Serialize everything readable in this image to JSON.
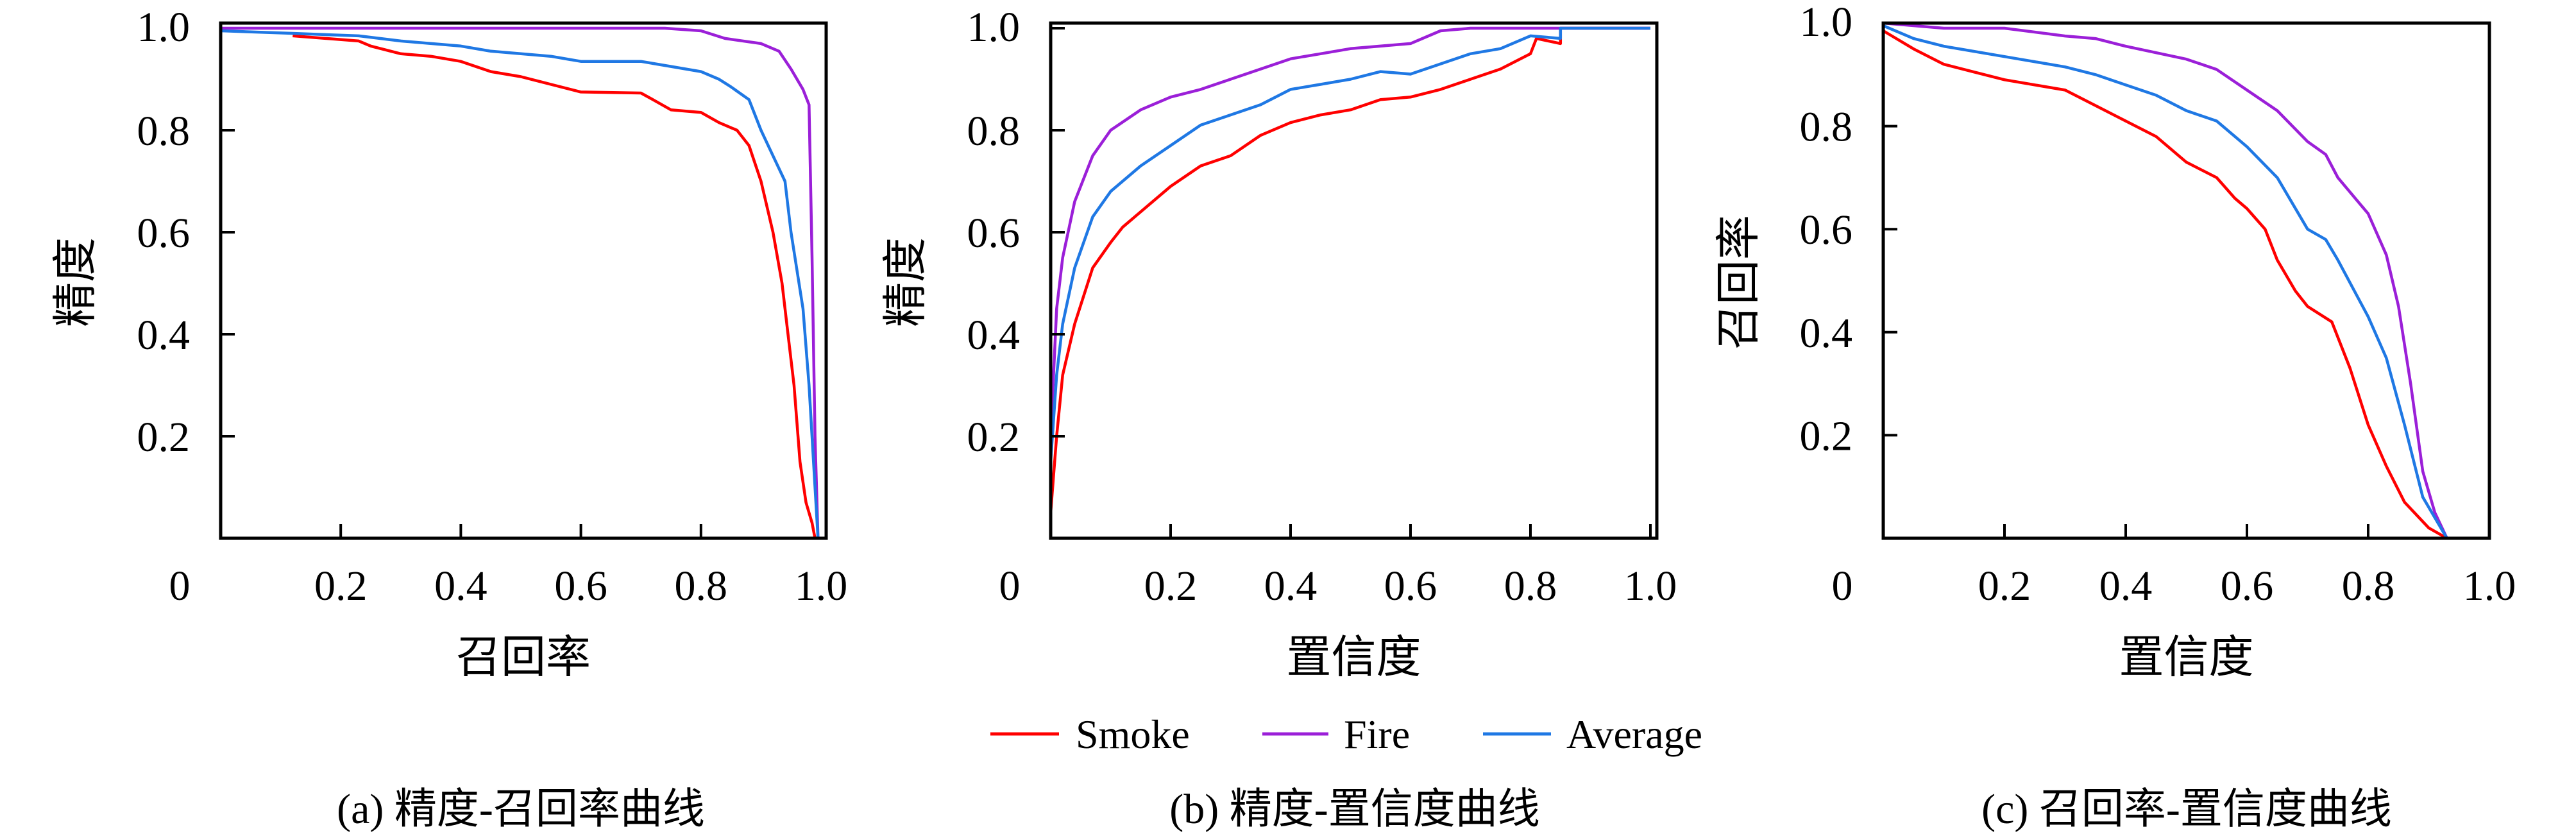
{
  "colors": {
    "Smoke": "#ff0000",
    "Fire": "#9b1fd8",
    "Average": "#1f78e4"
  },
  "legend": [
    {
      "name": "Smoke"
    },
    {
      "name": "Fire"
    },
    {
      "name": "Average"
    }
  ],
  "chart_data": [
    {
      "type": "line",
      "caption": "(a) 精度-召回率曲线",
      "xlabel": "召回率",
      "ylabel": "精度",
      "xlim": [
        0,
        1.0
      ],
      "ylim": [
        0,
        1.0
      ],
      "xticks": [
        "0",
        "0.2",
        "0.4",
        "0.6",
        "0.8",
        "1.0"
      ],
      "yticks": [
        "0.2",
        "0.4",
        "0.6",
        "0.8",
        "1.0"
      ],
      "grid": false,
      "series": [
        {
          "name": "Smoke",
          "x": [
            0.12,
            0.23,
            0.25,
            0.3,
            0.35,
            0.4,
            0.45,
            0.5,
            0.55,
            0.6,
            0.7,
            0.72,
            0.75,
            0.8,
            0.83,
            0.86,
            0.88,
            0.9,
            0.92,
            0.935,
            0.945,
            0.955,
            0.965,
            0.975,
            0.985,
            0.99
          ],
          "y": [
            0.985,
            0.975,
            0.965,
            0.95,
            0.945,
            0.935,
            0.915,
            0.905,
            0.89,
            0.875,
            0.873,
            0.86,
            0.84,
            0.835,
            0.815,
            0.8,
            0.77,
            0.7,
            0.6,
            0.5,
            0.4,
            0.3,
            0.15,
            0.07,
            0.03,
            0.0
          ]
        },
        {
          "name": "Fire",
          "x": [
            0.0,
            0.74,
            0.8,
            0.84,
            0.9,
            0.93,
            0.95,
            0.97,
            0.98,
            0.985,
            0.99,
            0.995
          ],
          "y": [
            1.0,
            1.0,
            0.995,
            0.98,
            0.97,
            0.955,
            0.92,
            0.88,
            0.85,
            0.55,
            0.2,
            0.0
          ]
        },
        {
          "name": "Average",
          "x": [
            0.0,
            0.12,
            0.23,
            0.3,
            0.4,
            0.45,
            0.55,
            0.6,
            0.7,
            0.75,
            0.8,
            0.83,
            0.85,
            0.88,
            0.9,
            0.92,
            0.94,
            0.95,
            0.97,
            0.98,
            0.99,
            0.995
          ],
          "y": [
            0.995,
            0.99,
            0.985,
            0.975,
            0.965,
            0.955,
            0.945,
            0.935,
            0.935,
            0.925,
            0.915,
            0.9,
            0.885,
            0.86,
            0.8,
            0.75,
            0.7,
            0.6,
            0.45,
            0.3,
            0.1,
            0.0
          ]
        }
      ]
    },
    {
      "type": "line",
      "caption": "(b) 精度-置信度曲线",
      "xlabel": "置信度",
      "ylabel": "精度",
      "xlim": [
        0,
        1.0
      ],
      "ylim": [
        0,
        1.0
      ],
      "xticks": [
        "0",
        "0.2",
        "0.4",
        "0.6",
        "0.8",
        "1.0"
      ],
      "yticks": [
        "0.2",
        "0.4",
        "0.6",
        "0.8",
        "1.0"
      ],
      "grid": false,
      "legend_position": "bottom",
      "series": [
        {
          "name": "Smoke",
          "x": [
            0,
            0.01,
            0.02,
            0.04,
            0.07,
            0.1,
            0.12,
            0.15,
            0.2,
            0.25,
            0.3,
            0.35,
            0.4,
            0.45,
            0.5,
            0.55,
            0.6,
            0.65,
            0.7,
            0.75,
            0.8,
            0.81,
            0.85,
            0.85,
            1.0
          ],
          "y": [
            0.05,
            0.2,
            0.32,
            0.42,
            0.53,
            0.58,
            0.61,
            0.64,
            0.69,
            0.73,
            0.75,
            0.79,
            0.815,
            0.83,
            0.84,
            0.86,
            0.865,
            0.88,
            0.9,
            0.92,
            0.95,
            0.98,
            0.97,
            1.0,
            1.0
          ]
        },
        {
          "name": "Fire",
          "x": [
            0,
            0.01,
            0.02,
            0.04,
            0.07,
            0.1,
            0.15,
            0.2,
            0.25,
            0.3,
            0.35,
            0.4,
            0.45,
            0.5,
            0.6,
            0.65,
            0.7,
            1.0
          ],
          "y": [
            0.2,
            0.45,
            0.55,
            0.66,
            0.75,
            0.8,
            0.84,
            0.865,
            0.88,
            0.9,
            0.92,
            0.94,
            0.95,
            0.96,
            0.97,
            0.995,
            1.0,
            1.0
          ]
        },
        {
          "name": "Average",
          "x": [
            0,
            0.01,
            0.02,
            0.04,
            0.07,
            0.1,
            0.15,
            0.2,
            0.25,
            0.3,
            0.35,
            0.4,
            0.45,
            0.5,
            0.55,
            0.6,
            0.65,
            0.7,
            0.75,
            0.8,
            0.85,
            0.85,
            1.0
          ],
          "y": [
            0.15,
            0.32,
            0.42,
            0.53,
            0.63,
            0.68,
            0.73,
            0.77,
            0.81,
            0.83,
            0.85,
            0.88,
            0.89,
            0.9,
            0.915,
            0.91,
            0.93,
            0.95,
            0.96,
            0.985,
            0.98,
            1.0,
            1.0
          ]
        }
      ]
    },
    {
      "type": "line",
      "caption": "(c) 召回率-置信度曲线",
      "xlabel": "置信度",
      "ylabel": "召回率",
      "xlim": [
        0,
        1.0
      ],
      "ylim": [
        0,
        1.0
      ],
      "xticks": [
        "0",
        "0.2",
        "0.4",
        "0.6",
        "0.8",
        "1.0"
      ],
      "yticks": [
        "0.2",
        "0.4",
        "0.6",
        "0.8",
        "1.0"
      ],
      "grid": false,
      "series": [
        {
          "name": "Smoke",
          "x": [
            0,
            0.05,
            0.1,
            0.15,
            0.2,
            0.3,
            0.35,
            0.4,
            0.45,
            0.5,
            0.55,
            0.58,
            0.6,
            0.63,
            0.65,
            0.68,
            0.7,
            0.74,
            0.77,
            0.8,
            0.83,
            0.86,
            0.9,
            0.93,
            1.0
          ],
          "y": [
            0.985,
            0.95,
            0.92,
            0.905,
            0.89,
            0.87,
            0.84,
            0.81,
            0.78,
            0.73,
            0.7,
            0.66,
            0.64,
            0.6,
            0.54,
            0.48,
            0.45,
            0.42,
            0.33,
            0.22,
            0.14,
            0.07,
            0.02,
            0.0,
            0.0
          ]
        },
        {
          "name": "Fire",
          "x": [
            0,
            0.1,
            0.2,
            0.3,
            0.35,
            0.4,
            0.5,
            0.55,
            0.6,
            0.65,
            0.7,
            0.73,
            0.75,
            0.8,
            0.83,
            0.85,
            0.87,
            0.89,
            0.91,
            0.93,
            1.0
          ],
          "y": [
            1.0,
            0.99,
            0.99,
            0.975,
            0.97,
            0.955,
            0.93,
            0.91,
            0.87,
            0.83,
            0.77,
            0.745,
            0.7,
            0.63,
            0.55,
            0.45,
            0.3,
            0.13,
            0.05,
            0.0,
            0.0
          ]
        },
        {
          "name": "Average",
          "x": [
            0,
            0.05,
            0.1,
            0.2,
            0.3,
            0.35,
            0.4,
            0.45,
            0.5,
            0.55,
            0.6,
            0.65,
            0.7,
            0.73,
            0.75,
            0.8,
            0.83,
            0.86,
            0.89,
            0.93
          ],
          "y": [
            0.995,
            0.97,
            0.955,
            0.935,
            0.915,
            0.9,
            0.88,
            0.86,
            0.83,
            0.81,
            0.76,
            0.7,
            0.6,
            0.58,
            0.54,
            0.43,
            0.35,
            0.22,
            0.08,
            0.0
          ]
        }
      ]
    }
  ]
}
